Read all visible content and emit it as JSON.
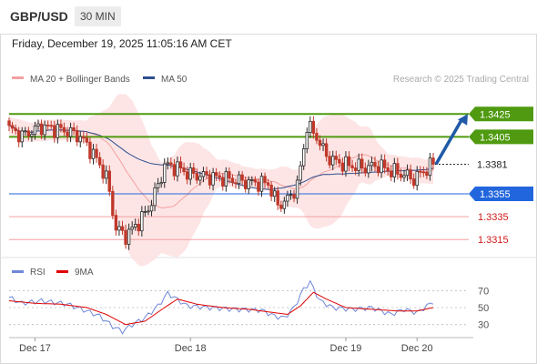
{
  "header": {
    "symbol": "GBP/USD",
    "timeframe": "30 MIN",
    "datetime": "Friday, December 19, 2025 11:05:16 AM CET"
  },
  "colors": {
    "bollinger": "#f4a0a0",
    "bollinger_fill": "#fde0e0",
    "ma50": "#2f4f8f",
    "candle_up": "#2a2a2a",
    "candle_down": "#c0392b",
    "resistance": "#4f9a10",
    "pivot": "#2266dd",
    "support": "#f4a0a0",
    "current": "#2a2a2a",
    "arrow": "#1f5aa6",
    "rsi": "#6f88d8",
    "rsi_ma": "#e00000"
  },
  "chart_data": [
    {
      "type": "candlestick",
      "legend": [
        {
          "label": "MA 20 + Bollinger Bands",
          "color": "#f4a0a0"
        },
        {
          "label": "MA 50",
          "color": "#2f4f8f"
        }
      ],
      "watermark": "Research © 2025 Trading Central",
      "ylim": [
        1.33,
        1.3442
      ],
      "x_ticks": [
        {
          "label": "Dec 17",
          "index": 8
        },
        {
          "label": "Dec 18",
          "index": 56
        },
        {
          "label": "Dec 19",
          "index": 104
        },
        {
          "label": "Dec 20",
          "index": 126
        }
      ],
      "levels": [
        {
          "label": "1.3425",
          "value": 1.3425,
          "kind": "resistance"
        },
        {
          "label": "1.3405",
          "value": 1.3405,
          "kind": "resistance"
        },
        {
          "label": "1.3381",
          "value": 1.3381,
          "kind": "current"
        },
        {
          "label": "1.3355",
          "value": 1.3355,
          "kind": "pivot"
        },
        {
          "label": "1.3335",
          "value": 1.3335,
          "kind": "support"
        },
        {
          "label": "1.3315",
          "value": 1.3315,
          "kind": "support"
        }
      ],
      "forecast_arrow": {
        "from_index": 131,
        "from_value": 1.3381,
        "to_value": 1.3425
      },
      "key_points": [
        [
          0,
          1.3412
        ],
        [
          4,
          1.3406
        ],
        [
          10,
          1.3414
        ],
        [
          18,
          1.341
        ],
        [
          22,
          1.3405
        ],
        [
          26,
          1.339
        ],
        [
          30,
          1.337
        ],
        [
          33,
          1.3325
        ],
        [
          36,
          1.3318
        ],
        [
          40,
          1.333
        ],
        [
          43,
          1.3342
        ],
        [
          46,
          1.3362
        ],
        [
          48,
          1.338
        ],
        [
          52,
          1.3378
        ],
        [
          56,
          1.3372
        ],
        [
          62,
          1.337
        ],
        [
          68,
          1.3368
        ],
        [
          74,
          1.3365
        ],
        [
          80,
          1.3364
        ],
        [
          83,
          1.3345
        ],
        [
          86,
          1.335
        ],
        [
          89,
          1.3362
        ],
        [
          91,
          1.3395
        ],
        [
          92,
          1.3415
        ],
        [
          95,
          1.3405
        ],
        [
          98,
          1.3388
        ],
        [
          101,
          1.3383
        ],
        [
          105,
          1.338
        ],
        [
          110,
          1.3378
        ],
        [
          114,
          1.338
        ],
        [
          118,
          1.3375
        ],
        [
          122,
          1.3372
        ],
        [
          125,
          1.3368
        ],
        [
          128,
          1.3375
        ],
        [
          131,
          1.3381
        ]
      ]
    },
    {
      "type": "line",
      "legend": [
        {
          "label": "RSI",
          "color": "#6f88d8"
        },
        {
          "label": "9MA",
          "color": "#e00000"
        }
      ],
      "ylim": [
        20,
        80
      ],
      "y_ticks": [
        "70",
        "50",
        "30"
      ],
      "y_tick_values": [
        70,
        50,
        30
      ],
      "rsi_points": [
        [
          0,
          62
        ],
        [
          4,
          55
        ],
        [
          10,
          58
        ],
        [
          18,
          54
        ],
        [
          24,
          46
        ],
        [
          28,
          40
        ],
        [
          32,
          28
        ],
        [
          35,
          22
        ],
        [
          38,
          30
        ],
        [
          42,
          38
        ],
        [
          46,
          52
        ],
        [
          49,
          67
        ],
        [
          51,
          62
        ],
        [
          55,
          52
        ],
        [
          62,
          50
        ],
        [
          70,
          48
        ],
        [
          78,
          47
        ],
        [
          82,
          40
        ],
        [
          85,
          38
        ],
        [
          88,
          50
        ],
        [
          91,
          72
        ],
        [
          93,
          80
        ],
        [
          96,
          58
        ],
        [
          100,
          50
        ],
        [
          106,
          48
        ],
        [
          112,
          50
        ],
        [
          118,
          42
        ],
        [
          122,
          48
        ],
        [
          126,
          44
        ],
        [
          131,
          57
        ]
      ],
      "ma_points": [
        [
          0,
          58
        ],
        [
          8,
          55
        ],
        [
          16,
          54
        ],
        [
          24,
          50
        ],
        [
          30,
          42
        ],
        [
          36,
          30
        ],
        [
          42,
          34
        ],
        [
          48,
          50
        ],
        [
          52,
          60
        ],
        [
          58,
          54
        ],
        [
          66,
          50
        ],
        [
          74,
          48
        ],
        [
          80,
          45
        ],
        [
          86,
          42
        ],
        [
          90,
          52
        ],
        [
          94,
          68
        ],
        [
          98,
          60
        ],
        [
          104,
          50
        ],
        [
          112,
          48
        ],
        [
          120,
          46
        ],
        [
          126,
          46
        ],
        [
          131,
          50
        ]
      ]
    }
  ]
}
